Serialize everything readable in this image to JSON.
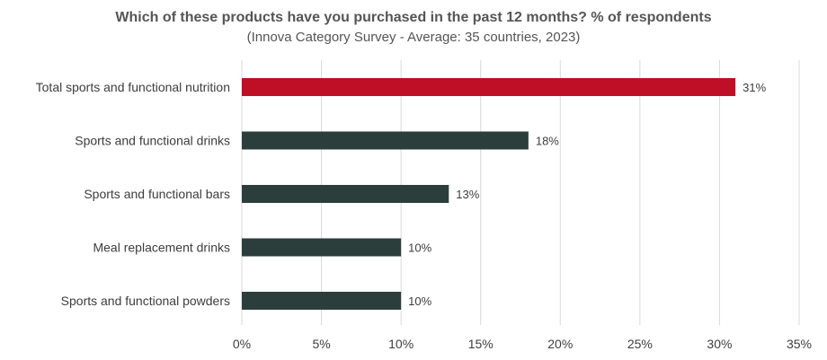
{
  "chart_data": {
    "type": "bar",
    "orientation": "horizontal",
    "title": "Which of these products have you purchased in the past 12 months? % of respondents",
    "subtitle": "(Innova Category Survey - Average: 35 countries, 2023)",
    "categories": [
      "Total sports and functional nutrition",
      "Sports and functional drinks",
      "Sports and functional bars",
      "Meal replacement drinks",
      "Sports and functional powders"
    ],
    "values": [
      31,
      18,
      13,
      10,
      10
    ],
    "data_labels": [
      "31%",
      "18%",
      "13%",
      "10%",
      "10%"
    ],
    "xlim": [
      0,
      35
    ],
    "x_ticks": [
      0,
      5,
      10,
      15,
      20,
      25,
      30,
      35
    ],
    "x_tick_labels": [
      "0%",
      "5%",
      "10%",
      "15%",
      "20%",
      "25%",
      "30%",
      "35%"
    ],
    "grid": "vertical",
    "colors": {
      "highlight": "#be0f26",
      "default": "#2c3e3b",
      "grid": "#d9d9d9"
    },
    "highlight_index": 0
  }
}
